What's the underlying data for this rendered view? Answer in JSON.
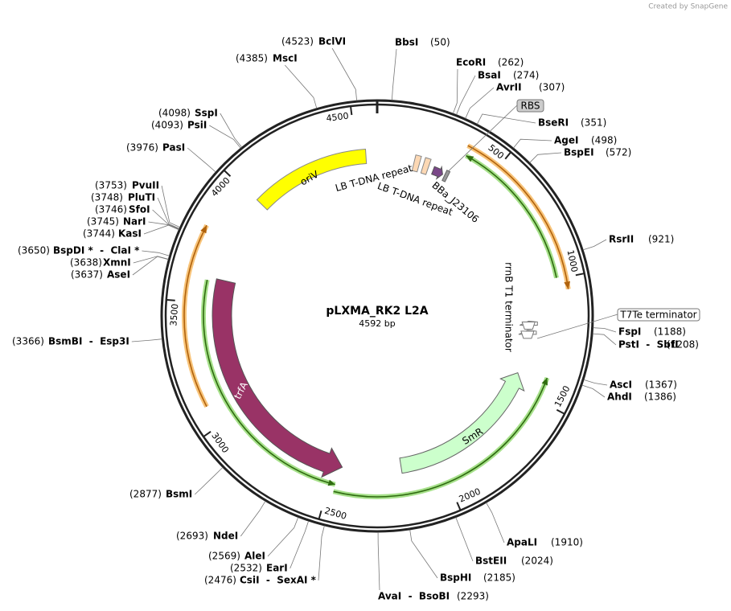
{
  "credit": "Created by SnapGene",
  "plasmid": {
    "name": "pLXMA_RK2 L2A",
    "length": {
      "value": 4592,
      "label": "4592 bp"
    }
  },
  "ruler": [
    500,
    1000,
    1500,
    2000,
    2500,
    3000,
    3500,
    4000,
    4500
  ],
  "features": [
    "oriV",
    "LB T-DNA repeat",
    "LB T-DNA repeat",
    "BBa_J23106",
    "RBS",
    "rrnB T1 terminator",
    "T7Te terminator",
    "trfA",
    "SmR"
  ],
  "enzymes": [
    {
      "name": "BclVI",
      "position": {
        "value": 4523,
        "label": "(4523)"
      }
    },
    {
      "name": "BbsI",
      "position": {
        "value": 50,
        "label": "(50)"
      }
    },
    {
      "name": "MscI",
      "position": {
        "value": 4385,
        "label": "(4385)"
      }
    },
    {
      "name": "EcoRI",
      "position": {
        "value": 262,
        "label": "(262)"
      }
    },
    {
      "name": "BsaI",
      "position": {
        "value": 274,
        "label": "(274)"
      }
    },
    {
      "name": "AvrII",
      "position": {
        "value": 307,
        "label": "(307)"
      }
    },
    {
      "name": "BseRI",
      "position": {
        "value": 351,
        "label": "(351)"
      }
    },
    {
      "name": "SspI",
      "position": {
        "value": 4098,
        "label": "(4098)"
      }
    },
    {
      "name": "PsiI",
      "position": {
        "value": 4093,
        "label": "(4093)"
      }
    },
    {
      "name": "PasI",
      "position": {
        "value": 3976,
        "label": "(3976)"
      }
    },
    {
      "name": "AgeI",
      "position": {
        "value": 498,
        "label": "(498)"
      }
    },
    {
      "name": "BspEI",
      "position": {
        "value": 572,
        "label": "(572)"
      }
    },
    {
      "name": "PvuII",
      "position": {
        "value": 3753,
        "label": "(3753)"
      }
    },
    {
      "name": "PluTI",
      "position": {
        "value": 3748,
        "label": "(3748)"
      }
    },
    {
      "name": "SfoI",
      "position": {
        "value": 3746,
        "label": "(3746)"
      }
    },
    {
      "name": "NarI",
      "position": {
        "value": 3745,
        "label": "(3745)"
      }
    },
    {
      "name": "KasI",
      "position": {
        "value": 3744,
        "label": "(3744)"
      }
    },
    {
      "name": "BspDI *  -  ClaI *",
      "position": {
        "value": 3650,
        "label": "(3650)"
      }
    },
    {
      "name": "XmnI",
      "position": {
        "value": 3638,
        "label": "(3638)"
      }
    },
    {
      "name": "AseI",
      "position": {
        "value": 3637,
        "label": "(3637)"
      }
    },
    {
      "name": "RsrII",
      "position": {
        "value": 921,
        "label": "(921)"
      }
    },
    {
      "name": "FspI",
      "position": {
        "value": 1188,
        "label": "(1188)"
      }
    },
    {
      "name": "PstI  -  SbfI",
      "position": {
        "value": 1208,
        "label": "(1208)"
      }
    },
    {
      "name": "BsmBI  -  Esp3I",
      "position": {
        "value": 3366,
        "label": "(3366)"
      }
    },
    {
      "name": "AscI",
      "position": {
        "value": 1367,
        "label": "(1367)"
      }
    },
    {
      "name": "AhdI",
      "position": {
        "value": 1386,
        "label": "(1386)"
      }
    },
    {
      "name": "BsmI",
      "position": {
        "value": 2877,
        "label": "(2877)"
      }
    },
    {
      "name": "ApaLI",
      "position": {
        "value": 1910,
        "label": "(1910)"
      }
    },
    {
      "name": "NdeI",
      "position": {
        "value": 2693,
        "label": "(2693)"
      }
    },
    {
      "name": "BstEII",
      "position": {
        "value": 2024,
        "label": "(2024)"
      }
    },
    {
      "name": "AleI",
      "position": {
        "value": 2569,
        "label": "(2569)"
      }
    },
    {
      "name": "EarI",
      "position": {
        "value": 2532,
        "label": "(2532)"
      }
    },
    {
      "name": "CsiI  -  SexAI *",
      "position": {
        "value": 2476,
        "label": "(2476)"
      }
    },
    {
      "name": "BspHI",
      "position": {
        "value": 2185,
        "label": "(2185)"
      }
    },
    {
      "name": "AvaI  -  BsoBI",
      "position": {
        "value": 2293,
        "label": "(2293)"
      }
    }
  ]
}
